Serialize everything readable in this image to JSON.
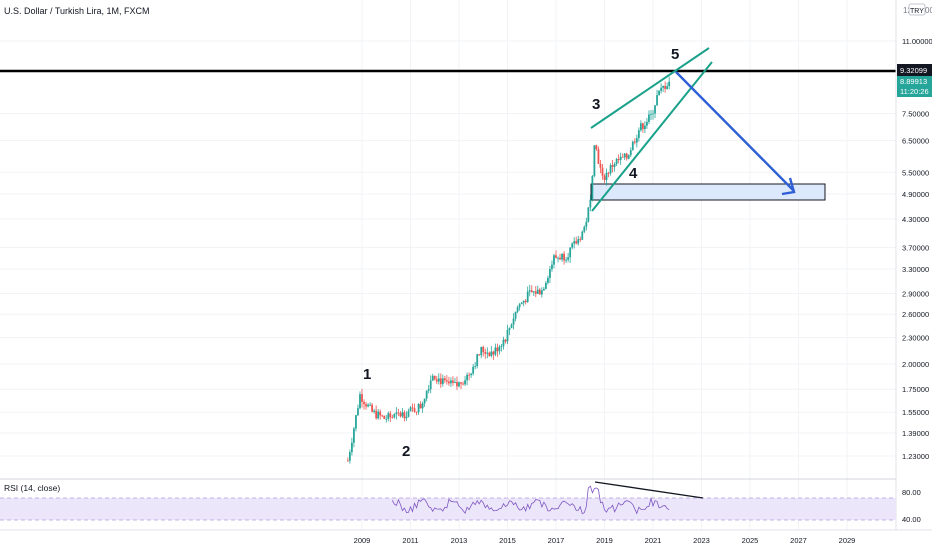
{
  "header": {
    "title": "U.S. Dollar / Turkish Lira, 1M, FXCM",
    "currency_top": "12",
    "currency_badge": "TRY",
    "currency_suffix": "00"
  },
  "colors": {
    "up": "#26a69a",
    "down": "#ef5350",
    "wave_lines": "#1aa18a",
    "forecast_arrow": "#2f5fd6",
    "target_box": "#dce8fb",
    "rsi_band": "#ece6fb",
    "rsi_line": "#7e57c2",
    "price_label": "#26a69a"
  },
  "price_axis": {
    "ticks": [
      "11.00000",
      "7.50000",
      "6.50000",
      "5.50000",
      "4.90000",
      "4.30000",
      "3.70000",
      "3.30000",
      "2.90000",
      "2.60000",
      "2.30000",
      "2.00000",
      "1.75000",
      "1.55000",
      "1.39000",
      "1.23000"
    ],
    "resistance_label": "9.32099",
    "last_price_label": "8.89913",
    "countdown_label": "11:20:26"
  },
  "time_axis": {
    "ticks": [
      "2009",
      "2011",
      "2013",
      "2015",
      "2017",
      "2019",
      "2021",
      "2023",
      "2025",
      "2027",
      "2029"
    ]
  },
  "waves": [
    "1",
    "2",
    "3",
    "4",
    "5"
  ],
  "rsi": {
    "label": "RSI (14, close)",
    "ticks": [
      "80.00",
      "40.00"
    ]
  },
  "chart_data": {
    "type": "candlestick",
    "scale": "log",
    "series_note": "",
    "x": [
      "2008-06",
      "2008-12",
      "2009-06",
      "2009-12",
      "2010-06",
      "2010-12",
      "2011-06",
      "2011-12",
      "2012-06",
      "2012-12",
      "2013-06",
      "2013-12",
      "2014-06",
      "2014-12",
      "2015-06",
      "2015-12",
      "2016-06",
      "2016-12",
      "2017-06",
      "2017-12",
      "2018-03",
      "2018-06",
      "2018-08",
      "2018-12",
      "2019-06",
      "2019-12",
      "2020-06",
      "2020-12",
      "2021-03",
      "2021-06",
      "2021-09"
    ],
    "close": [
      1.2,
      1.7,
      1.55,
      1.5,
      1.52,
      1.55,
      1.6,
      1.9,
      1.8,
      1.78,
      1.9,
      2.15,
      2.12,
      2.3,
      2.7,
      2.9,
      2.95,
      3.5,
      3.55,
      3.85,
      4.1,
      4.7,
      6.5,
      5.3,
      5.8,
      5.95,
      6.9,
      7.4,
      8.2,
      8.6,
      8.9
    ],
    "resistance": 9.32099,
    "last_price": 8.89913,
    "target_zone": [
      4.75,
      5.1
    ]
  }
}
